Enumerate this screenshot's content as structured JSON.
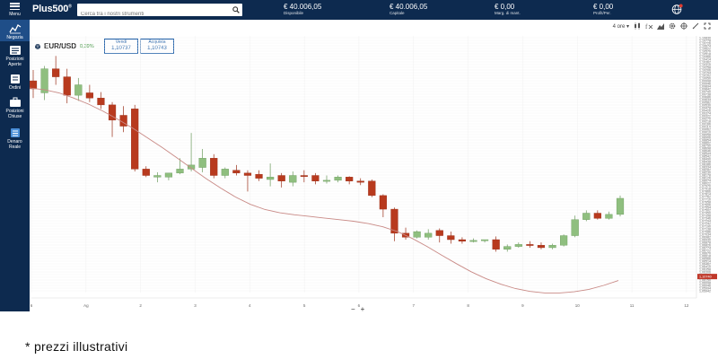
{
  "header": {
    "menu_label": "Menu",
    "logo": "Plus500",
    "logo_reg": "®",
    "search_placeholder": "Cerca tra i nostri strumenti",
    "stats": [
      {
        "value": "€ 40.006,05",
        "label": "Disponibile"
      },
      {
        "value": "€ 40.006,05",
        "label": "Capitale"
      },
      {
        "value": "€ 0,00",
        "label": "Marg. di mant."
      },
      {
        "value": "€ 0,00",
        "label": "Profit/Per."
      }
    ]
  },
  "sidebar": {
    "items": [
      {
        "label": "Negozia",
        "icon": "chart-icon"
      },
      {
        "label": "Posizioni Aperte",
        "icon": "positions-icon"
      },
      {
        "label": "Ordini",
        "icon": "orders-icon"
      },
      {
        "label": "Posizioni Chiuse",
        "icon": "briefcase-icon"
      },
      {
        "label": "Denaro Reale",
        "icon": "wallet-icon"
      }
    ]
  },
  "instrument": {
    "name": "EUR/USD",
    "change": "0,39%",
    "sell_label": "Vendi",
    "sell_price": "1,10737",
    "buy_label": "Acquista",
    "buy_price": "1,10743"
  },
  "toolbar": {
    "timeframe": "4 ore"
  },
  "zoom": {
    "minus": "−",
    "plus": "+"
  },
  "footnote": "* prezzi illustrativi",
  "colors": {
    "up": "#8fbf7f",
    "down": "#b83a1e",
    "ma": "#c98a86",
    "accent": "#1f5fa8",
    "navy": "#0d2a4f"
  },
  "chart_data": {
    "type": "candlestick",
    "x_ticks": [
      "6",
      "Ag",
      "2",
      "3",
      "4",
      "5",
      "6",
      "7",
      "8",
      "9",
      "10",
      "11",
      "12"
    ],
    "y_ticks": [
      "1,10830",
      "1,10778",
      "1,10726",
      "1,10674",
      "1,10622",
      "1,10570",
      "1,10518",
      "1,10466",
      "1,10414",
      "1,10362",
      "1,10310",
      "1,10258",
      "1,10206",
      "1,10154",
      "1,10102",
      "1,10050",
      "1,09998",
      "1,09946",
      "1,09894",
      "1,09842",
      "1,09790",
      "1,09738",
      "1,09686",
      "1,09634",
      "1,09582",
      "1,09530",
      "1,09478",
      "1,09426",
      "1,09374",
      "1,09322",
      "1,09270",
      "1,09218",
      "1,09166",
      "1,09114",
      "1,09062",
      "1,09010",
      "1,08958",
      "1,08906",
      "1,08854",
      "1,08802",
      "1,08750",
      "1,08698",
      "1,08646",
      "1,08594",
      "1,08542",
      "1,08490",
      "1,08438",
      "1,08386",
      "1,08334",
      "1,08282",
      "1,08230",
      "1,08178",
      "1,08126",
      "1,08074",
      "1,08022",
      "1,07970",
      "1,07918",
      "1,07866",
      "1,07814",
      "1,07762",
      "1,07710",
      "1,07658",
      "1,07606",
      "1,07554",
      "1,07502",
      "1,07450",
      "1,07398",
      "1,07346",
      "1,07294",
      "1,07242",
      "1,07190",
      "1,07138",
      "1,07086",
      "1,07034",
      "1,06982",
      "1,06930",
      "1,06878",
      "1,06826",
      "1,06774",
      "1,06722",
      "1,06670",
      "1,06618",
      "1,06566",
      "1,06514",
      "1,06462",
      "1,06410",
      "1,06358",
      "1,06306",
      "1,06254",
      "1,06202",
      "1,06150",
      "1,06098",
      "1,06046",
      "1,05994",
      "1,05942"
    ],
    "ylim": [
      1.1042,
      1.1106
    ],
    "last_price": "1,10740",
    "ma_values": [
      1.1093,
      1.10926,
      1.10918,
      1.10905,
      1.1089,
      1.10872,
      1.10852,
      1.1083,
      1.10806,
      1.10782,
      1.10756,
      1.1073,
      1.10704,
      1.1068,
      1.10658,
      1.1064,
      1.10627,
      1.10619,
      1.10614,
      1.1061,
      1.10606,
      1.10602,
      1.10598,
      1.10592,
      1.10584,
      1.10572,
      1.10555,
      1.10535,
      1.10513,
      1.10492,
      1.10472,
      1.10455,
      1.10441,
      1.1043,
      1.10423,
      1.10419,
      1.10419,
      1.10422,
      1.10428,
      1.10438,
      1.1045
    ],
    "candles": [
      {
        "o": 1.10948,
        "h": 1.10975,
        "c": 1.10928,
        "l": 1.10905
      },
      {
        "o": 1.10918,
        "h": 1.10985,
        "c": 1.10978,
        "l": 1.109
      },
      {
        "o": 1.10978,
        "h": 1.1101,
        "c": 1.10958,
        "l": 1.10938
      },
      {
        "o": 1.10958,
        "h": 1.10978,
        "c": 1.10912,
        "l": 1.10892
      },
      {
        "o": 1.10912,
        "h": 1.10955,
        "c": 1.10938,
        "l": 1.10898
      },
      {
        "o": 1.10918,
        "h": 1.10938,
        "c": 1.10905,
        "l": 1.10895
      },
      {
        "o": 1.10905,
        "h": 1.1092,
        "c": 1.10888,
        "l": 1.10878
      },
      {
        "o": 1.10888,
        "h": 1.10895,
        "c": 1.1085,
        "l": 1.10808
      },
      {
        "o": 1.10862,
        "h": 1.10885,
        "c": 1.10835,
        "l": 1.1082
      },
      {
        "o": 1.10878,
        "h": 1.10888,
        "c": 1.10728,
        "l": 1.10722
      },
      {
        "o": 1.10728,
        "h": 1.10735,
        "c": 1.10712,
        "l": 1.10708
      },
      {
        "o": 1.10708,
        "h": 1.1072,
        "c": 1.10712,
        "l": 1.10695
      },
      {
        "o": 1.10708,
        "h": 1.10718,
        "c": 1.10718,
        "l": 1.107
      },
      {
        "o": 1.10718,
        "h": 1.10755,
        "c": 1.10728,
        "l": 1.10715
      },
      {
        "o": 1.10728,
        "h": 1.10818,
        "c": 1.10738,
        "l": 1.10722
      },
      {
        "o": 1.10732,
        "h": 1.10778,
        "c": 1.10755,
        "l": 1.1072
      },
      {
        "o": 1.10755,
        "h": 1.10765,
        "c": 1.10712,
        "l": 1.10705
      },
      {
        "o": 1.10712,
        "h": 1.10732,
        "c": 1.10728,
        "l": 1.10705
      },
      {
        "o": 1.10725,
        "h": 1.10738,
        "c": 1.10718,
        "l": 1.10712
      },
      {
        "o": 1.10718,
        "h": 1.10725,
        "c": 1.10712,
        "l": 1.10672
      },
      {
        "o": 1.10715,
        "h": 1.10725,
        "c": 1.10705,
        "l": 1.10698
      },
      {
        "o": 1.10702,
        "h": 1.10742,
        "c": 1.10708,
        "l": 1.10685
      },
      {
        "o": 1.10712,
        "h": 1.10718,
        "c": 1.10698,
        "l": 1.10682
      },
      {
        "o": 1.10695,
        "h": 1.10722,
        "c": 1.10712,
        "l": 1.10685
      },
      {
        "o": 1.10712,
        "h": 1.10725,
        "c": 1.1071,
        "l": 1.10695
      },
      {
        "o": 1.10712,
        "h": 1.10718,
        "c": 1.10698,
        "l": 1.1069
      },
      {
        "o": 1.10698,
        "h": 1.10712,
        "c": 1.107,
        "l": 1.10692
      },
      {
        "o": 1.107,
        "h": 1.10712,
        "c": 1.10708,
        "l": 1.10695
      },
      {
        "o": 1.10708,
        "h": 1.1071,
        "c": 1.10698,
        "l": 1.1069
      },
      {
        "o": 1.10698,
        "h": 1.10705,
        "c": 1.10695,
        "l": 1.10688
      },
      {
        "o": 1.10698,
        "h": 1.10702,
        "c": 1.10662,
        "l": 1.10658
      },
      {
        "o": 1.10662,
        "h": 1.10665,
        "c": 1.10628,
        "l": 1.10608
      },
      {
        "o": 1.10628,
        "h": 1.10632,
        "c": 1.10568,
        "l": 1.10548
      },
      {
        "o": 1.10568,
        "h": 1.10582,
        "c": 1.10558,
        "l": 1.10552
      },
      {
        "o": 1.10558,
        "h": 1.10575,
        "c": 1.10572,
        "l": 1.10555
      },
      {
        "o": 1.10558,
        "h": 1.10578,
        "c": 1.10568,
        "l": 1.10552
      },
      {
        "o": 1.10575,
        "h": 1.1058,
        "c": 1.10562,
        "l": 1.10545
      },
      {
        "o": 1.10562,
        "h": 1.10572,
        "c": 1.10552,
        "l": 1.10542
      },
      {
        "o": 1.10552,
        "h": 1.10558,
        "c": 1.10548,
        "l": 1.10542
      },
      {
        "o": 1.10548,
        "h": 1.10555,
        "c": 1.1055,
        "l": 1.10545
      },
      {
        "o": 1.1055,
        "h": 1.10552,
        "c": 1.10552,
        "l": 1.10545
      },
      {
        "o": 1.10552,
        "h": 1.1056,
        "c": 1.10528,
        "l": 1.10522
      },
      {
        "o": 1.10528,
        "h": 1.1054,
        "c": 1.10535,
        "l": 1.10522
      },
      {
        "o": 1.10535,
        "h": 1.10545,
        "c": 1.1054,
        "l": 1.10532
      },
      {
        "o": 1.1054,
        "h": 1.10548,
        "c": 1.10538,
        "l": 1.10532
      },
      {
        "o": 1.10538,
        "h": 1.10545,
        "c": 1.10532,
        "l": 1.10528
      },
      {
        "o": 1.10532,
        "h": 1.10542,
        "c": 1.10538,
        "l": 1.10528
      },
      {
        "o": 1.10538,
        "h": 1.10565,
        "c": 1.10562,
        "l": 1.10535
      },
      {
        "o": 1.10562,
        "h": 1.10612,
        "c": 1.10602,
        "l": 1.10558
      },
      {
        "o": 1.10602,
        "h": 1.10625,
        "c": 1.10618,
        "l": 1.10598
      },
      {
        "o": 1.10618,
        "h": 1.10625,
        "c": 1.10605,
        "l": 1.10602
      },
      {
        "o": 1.10605,
        "h": 1.10622,
        "c": 1.10615,
        "l": 1.10602
      },
      {
        "o": 1.10615,
        "h": 1.10662,
        "c": 1.10655,
        "l": 1.1061
      }
    ]
  }
}
